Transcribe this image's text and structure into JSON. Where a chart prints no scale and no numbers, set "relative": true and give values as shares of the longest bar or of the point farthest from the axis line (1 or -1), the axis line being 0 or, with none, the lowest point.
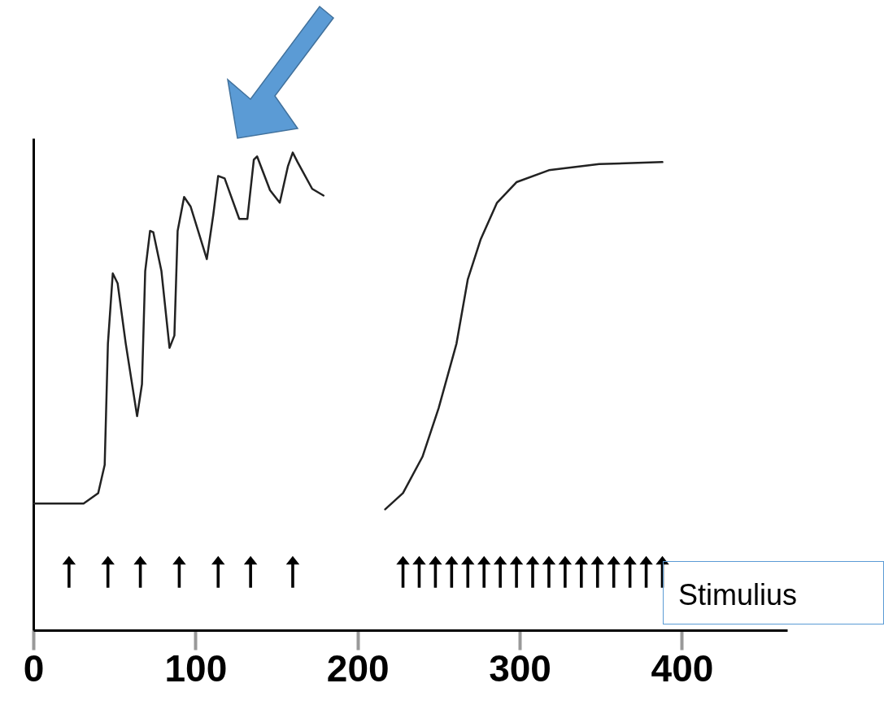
{
  "chart_data": {
    "type": "line",
    "relative": true,
    "xlim": [
      0,
      465
    ],
    "xticks": [
      0,
      100,
      200,
      300,
      400
    ],
    "grid": false,
    "legend": "bottom right",
    "line_style": "solid",
    "series": [
      {
        "color": "#222222",
        "x": [
          0,
          31,
          40,
          44,
          46,
          49,
          52,
          57,
          64,
          67,
          69,
          72,
          74,
          79,
          84,
          87,
          89,
          93,
          97,
          107,
          111,
          114,
          118,
          127,
          132,
          136,
          138,
          146,
          152,
          157,
          160,
          163,
          172,
          179
        ],
        "values": [
          0.265,
          0.265,
          0.287,
          0.346,
          0.6,
          0.747,
          0.726,
          0.6,
          0.448,
          0.515,
          0.752,
          0.836,
          0.833,
          0.752,
          0.591,
          0.617,
          0.836,
          0.907,
          0.887,
          0.777,
          0.87,
          0.951,
          0.946,
          0.861,
          0.861,
          0.985,
          0.992,
          0.921,
          0.895,
          0.971,
          1,
          0.98,
          0.924,
          0.91
        ]
      },
      {
        "color": "#222222",
        "x": [
          217,
          228,
          240,
          250,
          261,
          268,
          276,
          286,
          298,
          318,
          349,
          388
        ],
        "values": [
          0.253,
          0.287,
          0.363,
          0.465,
          0.6,
          0.735,
          0.819,
          0.895,
          0.938,
          0.963,
          0.976,
          0.98
        ]
      },
      {
        "type": "scatter",
        "name": "Stimulius",
        "color": "#000000",
        "marker": "triangle",
        "x": [
          22,
          46,
          66,
          90,
          114,
          134,
          160,
          228,
          238,
          248,
          258,
          268,
          278,
          288,
          298,
          308,
          318,
          328,
          338,
          348,
          358,
          368,
          378,
          388
        ],
        "values": [
          0.13,
          0.13,
          0.13,
          0.13,
          0.13,
          0.13,
          0.13,
          0.13,
          0.13,
          0.13,
          0.13,
          0.13,
          0.13,
          0.13,
          0.13,
          0.13,
          0.13,
          0.13,
          0.13,
          0.13,
          0.13,
          0.13,
          0.13,
          0.13
        ]
      }
    ]
  }
}
